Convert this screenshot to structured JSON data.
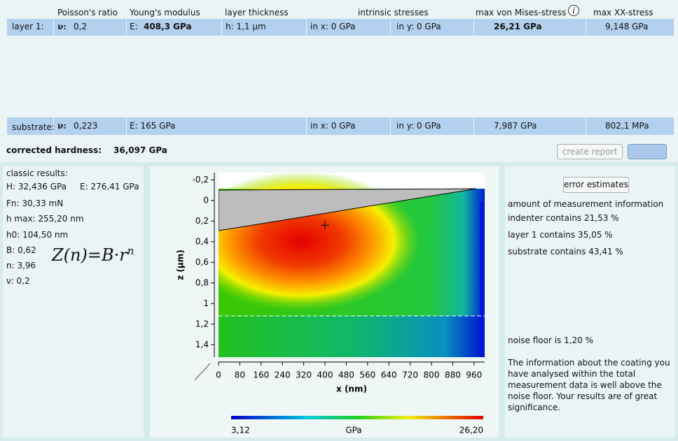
{
  "table": {
    "columns": [
      "Poisson's ratio",
      "Young's modulus",
      "layer thickness",
      "intrinsic stresses",
      "max von Mises-stress",
      "max XX-stress"
    ],
    "layer": {
      "label": "layer 1:",
      "nu_symbol": "ν:",
      "nu": "0,2",
      "e_symbol": "E:",
      "e": "408,3 GPa",
      "h": "h: 1,1 µm",
      "sx": "in x:  0 GPa",
      "sy": "in y: 0 GPa",
      "mises": "26,21 GPa",
      "xx": "9,148 GPa"
    },
    "substrate": {
      "label": "substrate:",
      "nu_symbol": "ν:",
      "nu": "0,223",
      "e": "E: 165 GPa",
      "sx": "in x:  0 GPa",
      "sy": "in y: 0 GPa",
      "mises": "7,987 GPa",
      "xx": "802,1 MPa"
    }
  },
  "hardness": {
    "label": "corrected hardness:",
    "value": "36,097 GPa",
    "button": "create report"
  },
  "classic_results": {
    "title": "classic results:",
    "h": "H: 32,436 GPa",
    "e": "E: 276,41 GPa",
    "fn": "Fn: 30,33 mN",
    "hmax": "h max: 255,20 nm",
    "h0": "h0: 104,50 nm",
    "b": "B: 0,62",
    "n": "n: 3,96",
    "nu": "ν: 0,2",
    "formula_base": "Z(n)=B·r",
    "formula_exponent": "n"
  },
  "chart_data": {
    "type": "heatmap",
    "x_label": "x (nm)",
    "y_label": "z (µm)",
    "xlim": [
      0,
      1000
    ],
    "xticks": [
      0,
      80,
      160,
      240,
      320,
      400,
      480,
      560,
      640,
      720,
      800,
      880,
      960
    ],
    "ylim": [
      -0.27,
      1.52
    ],
    "y_inverted": true,
    "yticks": [
      {
        "value": -0.2,
        "label": "-0,2"
      },
      0,
      {
        "value": 0.2,
        "label": "0,2"
      },
      {
        "value": 0.4,
        "label": "0,4"
      },
      {
        "value": 0.6,
        "label": "0,6"
      },
      {
        "value": 0.8,
        "label": "0,8"
      },
      1,
      {
        "value": 1.2,
        "label": "1,2"
      },
      {
        "value": 1.4,
        "label": "1,4"
      }
    ],
    "interface_z": 1.12,
    "max_point": {
      "x": 400,
      "z": 0.24
    },
    "colorbar": {
      "label": "GPa",
      "min": {
        "value": 3.12,
        "label": "3,12"
      },
      "max": {
        "value": 26.2,
        "label": "26,20"
      }
    }
  },
  "error_panel": {
    "button": "error estimates",
    "heading": "amount of measurement information",
    "indenter": "indenter contains 21,53 %",
    "layer": "layer 1 contains 35,05 %",
    "substrate": "substrate contains 43,41 %",
    "noise": "noise floor is 1,20 %",
    "text": "The information about the coating you have analysed within the total measurement data is well above the noise floor. Your results are of great significance."
  }
}
